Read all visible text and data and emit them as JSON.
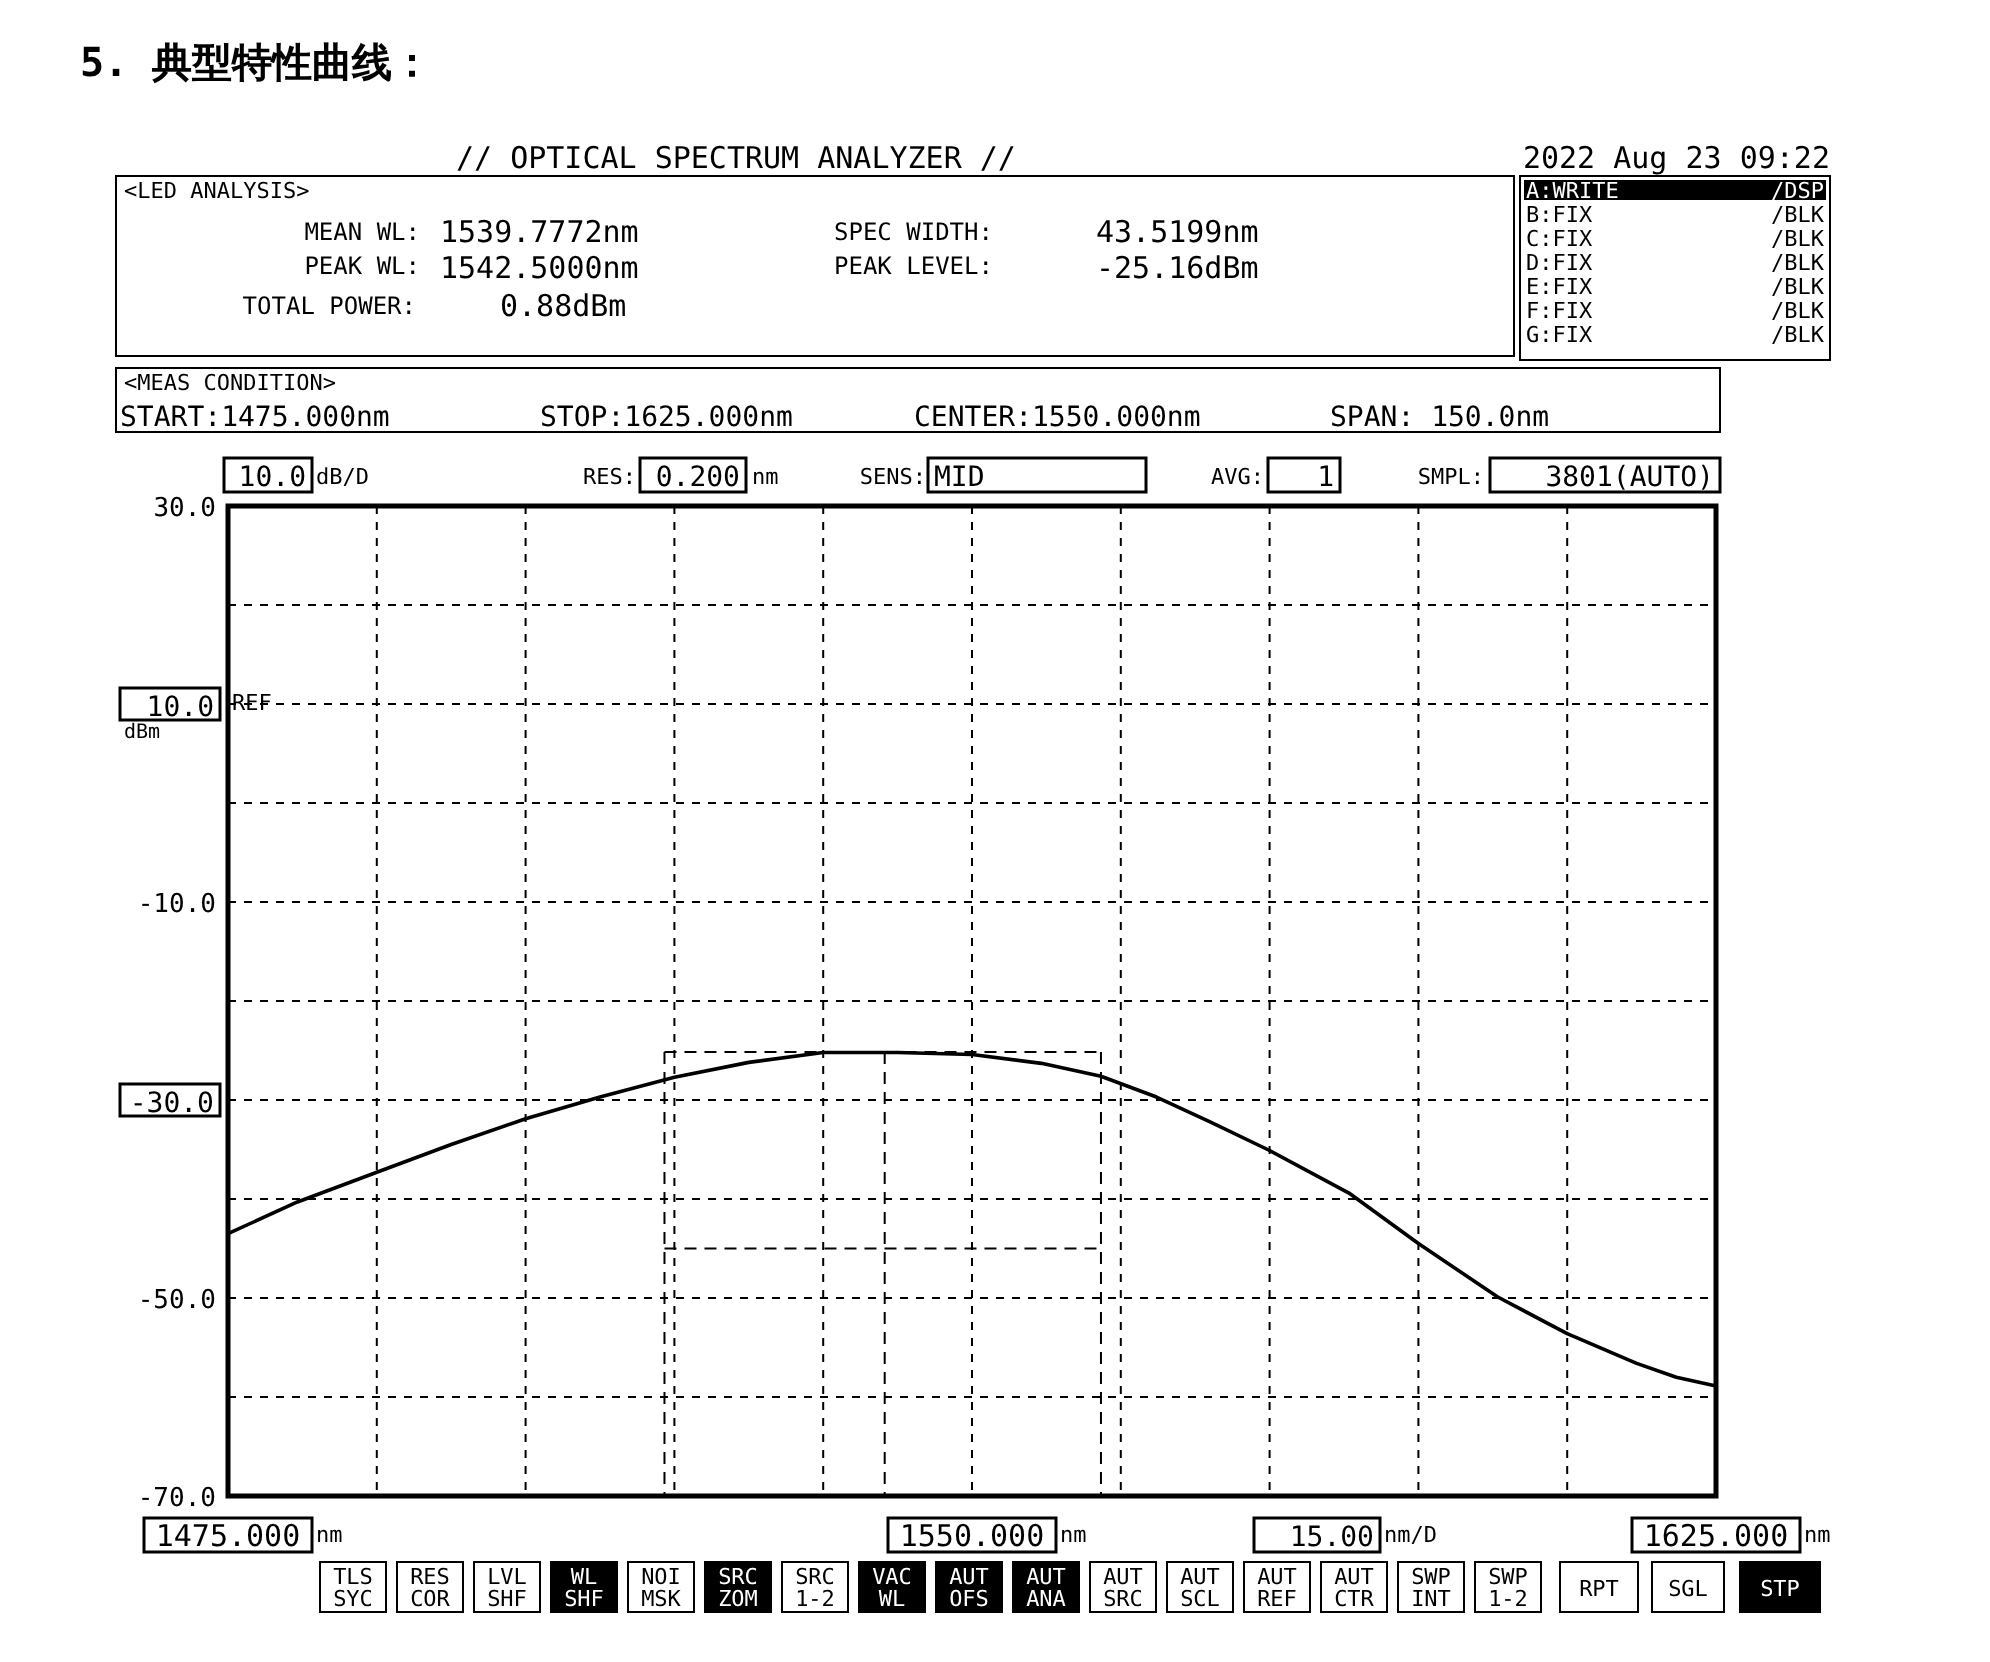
{
  "chart_data": {
    "type": "line",
    "title": "5. 典型特性曲线：",
    "x": [
      1475,
      1482,
      1490,
      1497.5,
      1505,
      1512.5,
      1520,
      1527.5,
      1535,
      1542.5,
      1550,
      1557,
      1563,
      1568.6,
      1574,
      1580,
      1588,
      1595,
      1603,
      1610,
      1617,
      1621,
      1625
    ],
    "series": [
      {
        "color": "#000000",
        "values": [
          -43.5,
          -40.3,
          -37.3,
          -34.5,
          -31.9,
          -29.7,
          -27.7,
          -26.2,
          -25.2,
          -25.2,
          -25.4,
          -26.3,
          -27.6,
          -29.7,
          -32.2,
          -35.1,
          -39.4,
          -44.5,
          -49.9,
          -53.6,
          -56.6,
          -58.0,
          -58.9
        ]
      }
    ],
    "xlim": [
      1475,
      1625
    ],
    "ylim": [
      -70,
      30
    ],
    "xticks": [
      {
        "value": 1475,
        "label": "1475.000"
      },
      {
        "value": 1490,
        "label": null
      },
      {
        "value": 1505,
        "label": null
      },
      {
        "value": 1520,
        "label": null
      },
      {
        "value": 1535,
        "label": null
      },
      {
        "value": 1550,
        "label": "1550.000"
      },
      {
        "value": 1565,
        "label": null
      },
      {
        "value": 1580,
        "label": null
      },
      {
        "value": 1595,
        "label": null
      },
      {
        "value": 1610,
        "label": null
      },
      {
        "value": 1625,
        "label": "1625.000"
      }
    ],
    "yticks": [
      {
        "value": 30,
        "label": "30.0"
      },
      {
        "value": 20,
        "label": null
      },
      {
        "value": 10,
        "label": "10.0"
      },
      {
        "value": 0,
        "label": null
      },
      {
        "value": -10,
        "label": "-10.0"
      },
      {
        "value": -20,
        "label": null
      },
      {
        "value": -30,
        "label": "-30.0"
      },
      {
        "value": -40,
        "label": null
      },
      {
        "value": -50,
        "label": "-50.0"
      },
      {
        "value": -60,
        "label": null
      },
      {
        "value": -70,
        "label": "-70.0"
      }
    ],
    "grid": true,
    "ref_lines": [
      {
        "axis": "x",
        "value": 1519,
        "line_style": "dashed"
      },
      {
        "axis": "x",
        "value": 1541.2,
        "line_style": "dashed"
      },
      {
        "axis": "x",
        "value": 1563,
        "line_style": "dashed"
      },
      {
        "axis": "y",
        "value": -25.16,
        "line_style": "dashed"
      },
      {
        "axis": "y",
        "value": -45,
        "line_style": "dashed"
      }
    ],
    "annotations": [
      "// OPTICAL SPECTRUM ANALYZER //",
      "2022 Aug 23 09:22",
      "<LED ANALYSIS>",
      "MEAN WL:",
      "1539.7772nm",
      "PEAK WL:",
      "1542.5000nm",
      "TOTAL POWER:",
      "0.88dBm",
      "SPEC WIDTH:",
      "43.5199nm",
      "PEAK LEVEL:",
      "-25.16dBm",
      "A:WRITE",
      "/DSP",
      "B:FIX",
      "/BLK",
      "C:FIX",
      "/BLK",
      "D:FIX",
      "/BLK",
      "E:FIX",
      "/BLK",
      "F:FIX",
      "/BLK",
      "G:FIX",
      "/BLK",
      "<MEAS CONDITION>",
      "START:1475.000nm",
      "STOP:1625.000nm",
      "CENTER:1550.000nm",
      "SPAN: 150.0nm",
      "10.0",
      "dB/D",
      "RES:",
      "0.200",
      "nm",
      "SENS:",
      "MID",
      "AVG:",
      "1",
      "SMPL:",
      "3801(AUTO)",
      "REF",
      "dBm",
      "15.00",
      "nm/D",
      "nm",
      "nm",
      "nm",
      "TLS SYC",
      "RES COR",
      "LVL SHF",
      "WL SHF",
      "NOI MSK",
      "SRC ZOM",
      "SRC 1-2",
      "VAC WL",
      "AUT OFS",
      "AUT ANA",
      "AUT SRC",
      "AUT SCL",
      "AUT REF",
      "AUT CTR",
      "SWP INT",
      "SWP 1-2",
      "RPT",
      "SGL",
      "STP"
    ]
  }
}
